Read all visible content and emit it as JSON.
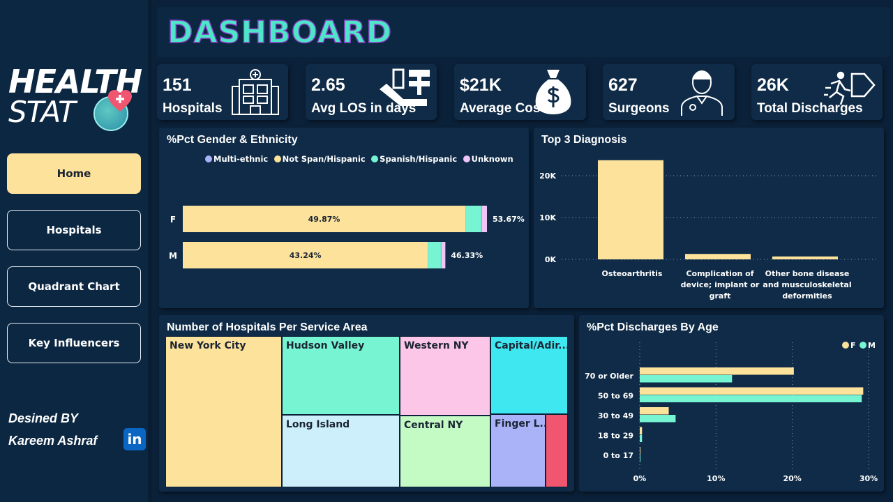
{
  "sidebar": {
    "logo": {
      "line1": "HEALTH",
      "line2": "STAT"
    },
    "nav": [
      {
        "label": "Home",
        "active": true
      },
      {
        "label": "Hospitals"
      },
      {
        "label": "Quadrant Chart"
      },
      {
        "label": "Key Influencers"
      }
    ],
    "credit_line1": "Desined BY",
    "credit_line2": "Kareem Ashraf",
    "linkedin": "in"
  },
  "header": {
    "title": "DASHBOARD"
  },
  "kpis": [
    {
      "value": "151",
      "label": "Hospitals",
      "icon": "hospital-icon"
    },
    {
      "value": "2.65",
      "label": "Avg LOS in days",
      "icon": "hospital-bed-icon"
    },
    {
      "value": "$21K",
      "label": "Average Cost",
      "icon": "money-bag-icon"
    },
    {
      "value": "627",
      "label": "Surgeons",
      "icon": "doctor-icon"
    },
    {
      "value": "26K",
      "label": "Total Discharges",
      "icon": "exit-icon"
    }
  ],
  "colors": {
    "yellow": "#fde29b",
    "teal": "#77f5d3",
    "purple": "#aab2f8",
    "pink": "#f0c3f9"
  },
  "chart_data": [
    {
      "type": "bar",
      "orientation": "horizontal-stacked",
      "title": "%Pct Gender & Ethnicity",
      "legend": [
        "Multi-ethnic",
        "Not Span/Hispanic",
        "Spanish/Hispanic",
        "Unknown"
      ],
      "legend_placement": "top",
      "categories": [
        "F",
        "M"
      ],
      "series": [
        {
          "name": "Multi-ethnic",
          "values": [
            0.1,
            0.1
          ],
          "color": "#aab2f8"
        },
        {
          "name": "Not Span/Hispanic",
          "values": [
            49.87,
            43.24
          ],
          "color": "#fde29b",
          "labels": [
            "49.87%",
            "43.24%"
          ]
        },
        {
          "name": "Spanish/Hispanic",
          "values": [
            2.8,
            2.3
          ],
          "color": "#77f5d3"
        },
        {
          "name": "Unknown",
          "values": [
            0.9,
            0.69
          ],
          "color": "#f0c3f9"
        }
      ],
      "totals": [
        "53.67%",
        "46.33%"
      ]
    },
    {
      "type": "bar",
      "title": "Top 3 Diagnosis",
      "categories": [
        "Osteoarthritis",
        "Complication of device; implant or graft",
        "Other bone disease and musculoskeletal deformities"
      ],
      "category_lines": [
        [
          "Osteoarthritis"
        ],
        [
          "Complication of",
          "device; implant or",
          "graft"
        ],
        [
          "Other bone disease",
          "and musculoskeletal",
          "deformities"
        ]
      ],
      "values": [
        23700,
        1300,
        700
      ],
      "ylim": [
        0,
        24000
      ],
      "yticks": [
        "0K",
        "10K",
        "20K"
      ],
      "grid": true
    },
    {
      "type": "table",
      "title": "Number of Hospitals Per Service Area",
      "categories": [
        "New York City",
        "Hudson Valley",
        "Long Island",
        "Western NY",
        "Central NY",
        "Capital/Adir...",
        "Finger L...",
        ""
      ]
    },
    {
      "type": "bar",
      "orientation": "horizontal-grouped",
      "title": "%Pct Discharges By Age",
      "categories": [
        "70 or Older",
        "50 to 69",
        "30 to 49",
        "18 to 29",
        "0 to 17"
      ],
      "series": [
        {
          "name": "F",
          "values": [
            20.2,
            29.3,
            3.8,
            0.3,
            0.05
          ],
          "color": "#fde29b"
        },
        {
          "name": "M",
          "values": [
            12.1,
            29.1,
            4.7,
            0.3,
            0.05
          ],
          "color": "#77f5d3"
        }
      ],
      "xlim": [
        0,
        30
      ],
      "xticks": [
        "0%",
        "10%",
        "20%",
        "30%"
      ],
      "legend_placement": "top-right",
      "grid": true
    }
  ]
}
